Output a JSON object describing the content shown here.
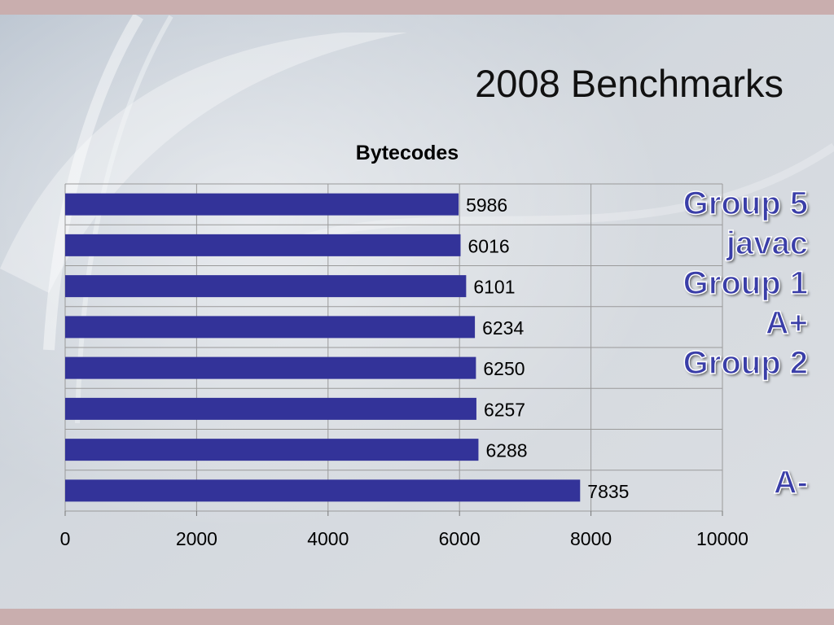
{
  "slide": {
    "title": "2008 Benchmarks",
    "group_labels": [
      "Group 5",
      "javac",
      "Group 1",
      "A+",
      "Group 2"
    ],
    "bottom_label": "A-"
  },
  "colors": {
    "bar": "#333399",
    "background": "#d8dbe0",
    "band": "#c9aeae",
    "label_fill": "#3a3ea8"
  },
  "chart_data": {
    "type": "bar",
    "orientation": "horizontal",
    "title": "Bytecodes",
    "xlabel": "",
    "ylabel": "",
    "values": [
      5986,
      6016,
      6101,
      6234,
      6250,
      6257,
      6288,
      7835
    ],
    "xlim": [
      0,
      10000
    ],
    "x_ticks": [
      0,
      2000,
      4000,
      6000,
      8000,
      10000
    ],
    "grid": true,
    "legend": "none",
    "data_labels": true
  }
}
